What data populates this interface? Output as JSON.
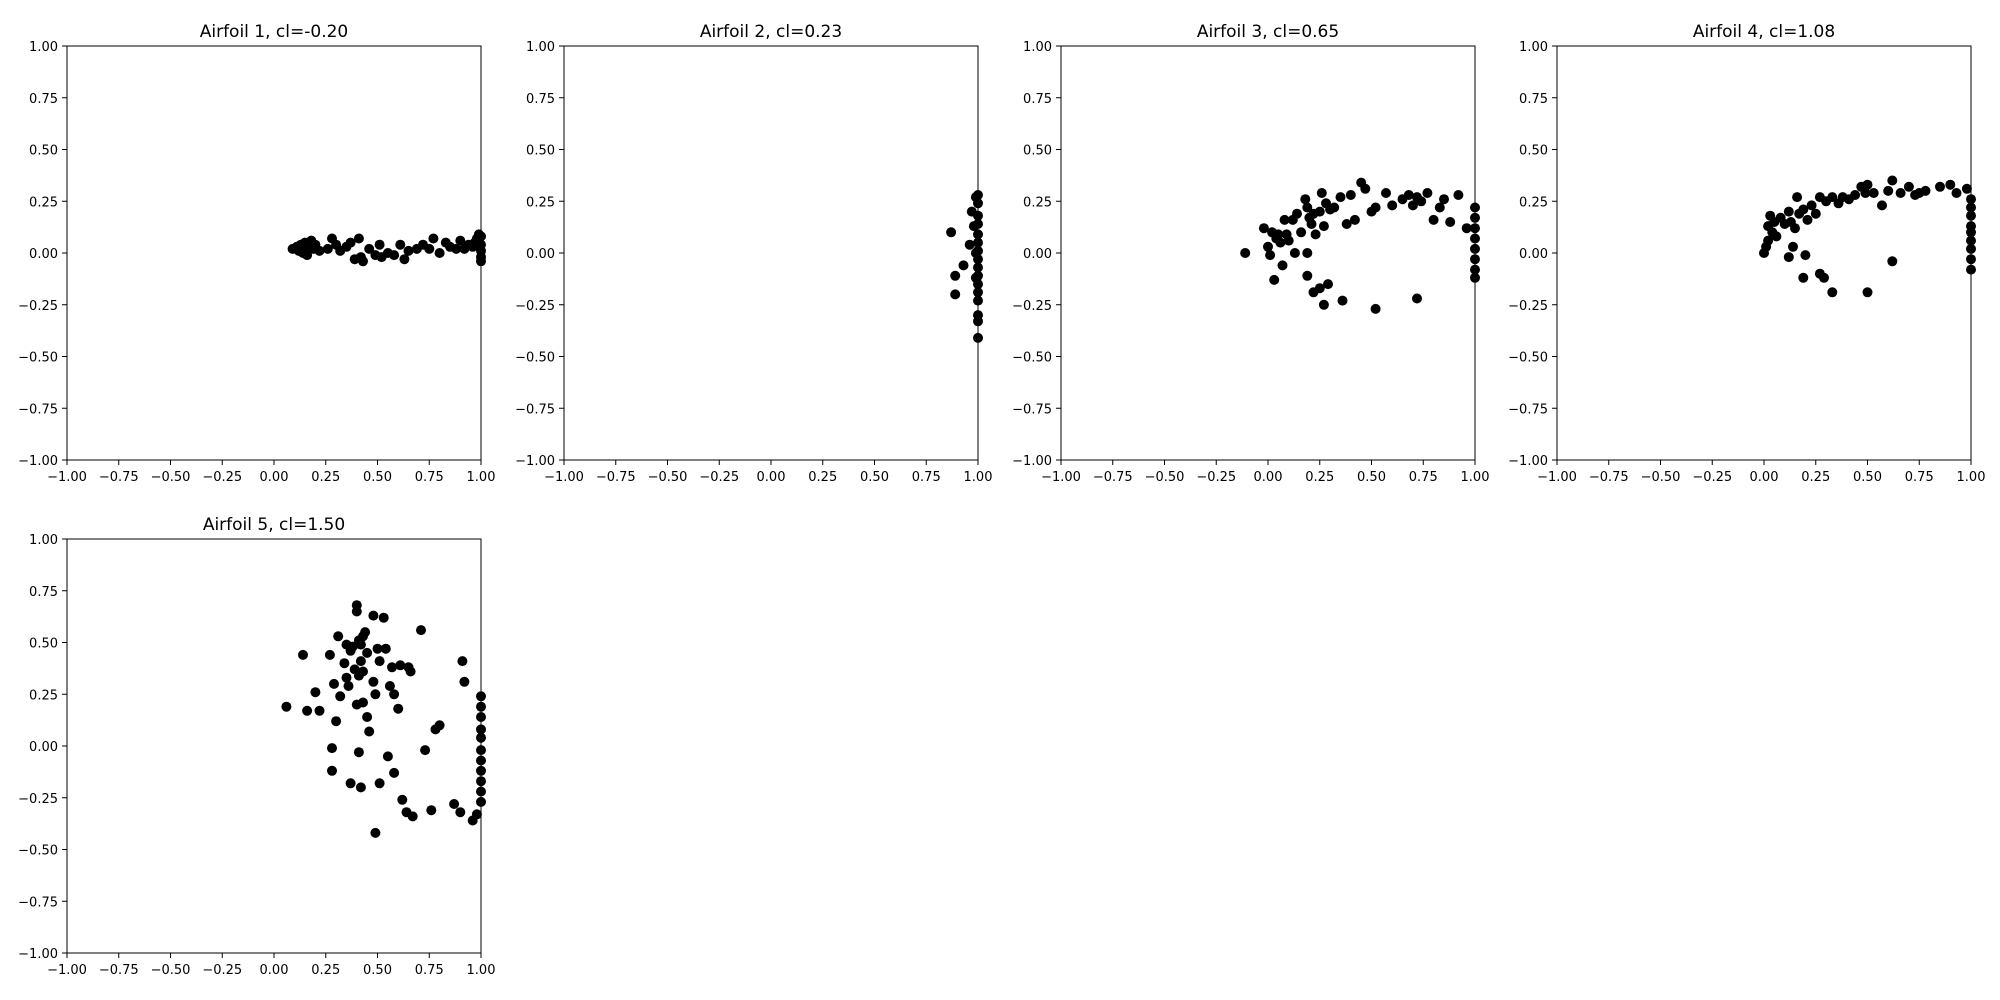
{
  "chart_data": [
    {
      "type": "scatter",
      "title": "Airfoil 1, cl=-0.20",
      "xlim": [
        -1.0,
        1.0
      ],
      "ylim": [
        -1.0,
        1.0
      ],
      "xticks": [
        "−1.00",
        "−0.75",
        "−0.50",
        "−0.25",
        "0.00",
        "0.25",
        "0.50",
        "0.75",
        "1.00"
      ],
      "yticks": [
        "−1.00",
        "−0.75",
        "−0.50",
        "−0.25",
        "0.00",
        "0.25",
        "0.50",
        "0.75",
        "1.00"
      ],
      "grid": false,
      "marker_color": "#000000",
      "points": [
        [
          0.09,
          0.02
        ],
        [
          0.11,
          0.03
        ],
        [
          0.12,
          0.01
        ],
        [
          0.13,
          0.04
        ],
        [
          0.14,
          0.02
        ],
        [
          0.15,
          0.05
        ],
        [
          0.16,
          0.01
        ],
        [
          0.17,
          0.03
        ],
        [
          0.18,
          0.06
        ],
        [
          0.19,
          0.02
        ],
        [
          0.14,
          0.0
        ],
        [
          0.16,
          -0.01
        ],
        [
          0.2,
          0.04
        ],
        [
          0.22,
          0.01
        ],
        [
          0.26,
          0.02
        ],
        [
          0.28,
          0.07
        ],
        [
          0.3,
          0.04
        ],
        [
          0.32,
          0.01
        ],
        [
          0.35,
          0.03
        ],
        [
          0.37,
          0.05
        ],
        [
          0.39,
          -0.03
        ],
        [
          0.41,
          0.07
        ],
        [
          0.42,
          -0.02
        ],
        [
          0.43,
          -0.04
        ],
        [
          0.46,
          0.02
        ],
        [
          0.49,
          -0.01
        ],
        [
          0.51,
          0.04
        ],
        [
          0.52,
          -0.02
        ],
        [
          0.55,
          0.0
        ],
        [
          0.58,
          -0.01
        ],
        [
          0.61,
          0.04
        ],
        [
          0.63,
          -0.03
        ],
        [
          0.65,
          0.01
        ],
        [
          0.69,
          0.02
        ],
        [
          0.72,
          0.04
        ],
        [
          0.75,
          0.02
        ],
        [
          0.77,
          0.07
        ],
        [
          0.8,
          0.0
        ],
        [
          0.83,
          0.05
        ],
        [
          0.85,
          0.03
        ],
        [
          0.88,
          0.02
        ],
        [
          0.9,
          0.06
        ],
        [
          0.92,
          0.02
        ],
        [
          0.94,
          0.04
        ],
        [
          0.96,
          0.03
        ],
        [
          0.98,
          0.07
        ],
        [
          1.0,
          0.08
        ],
        [
          1.0,
          0.04
        ],
        [
          1.0,
          0.01
        ],
        [
          1.0,
          -0.02
        ],
        [
          1.0,
          -0.04
        ],
        [
          0.99,
          0.09
        ],
        [
          0.97,
          0.05
        ]
      ]
    },
    {
      "type": "scatter",
      "title": "Airfoil 2, cl=0.23",
      "xlim": [
        -1.0,
        1.0
      ],
      "ylim": [
        -1.0,
        1.0
      ],
      "xticks": [
        "−1.00",
        "−0.75",
        "−0.50",
        "−0.25",
        "0.00",
        "0.25",
        "0.50",
        "0.75",
        "1.00"
      ],
      "yticks": [
        "−1.00",
        "−0.75",
        "−0.50",
        "−0.25",
        "0.00",
        "0.25",
        "0.50",
        "0.75",
        "1.00"
      ],
      "grid": false,
      "marker_color": "#000000",
      "points": [
        [
          0.87,
          0.1
        ],
        [
          0.89,
          -0.11
        ],
        [
          0.89,
          -0.2
        ],
        [
          0.93,
          -0.06
        ],
        [
          0.96,
          0.04
        ],
        [
          0.97,
          0.2
        ],
        [
          0.98,
          0.13
        ],
        [
          0.99,
          0.27
        ],
        [
          1.0,
          0.28
        ],
        [
          1.0,
          0.24
        ],
        [
          1.0,
          0.18
        ],
        [
          1.0,
          0.14
        ],
        [
          1.0,
          0.09
        ],
        [
          1.0,
          0.05
        ],
        [
          1.0,
          0.01
        ],
        [
          1.0,
          -0.03
        ],
        [
          1.0,
          -0.07
        ],
        [
          1.0,
          -0.11
        ],
        [
          1.0,
          -0.15
        ],
        [
          1.0,
          -0.19
        ],
        [
          1.0,
          -0.23
        ],
        [
          1.0,
          -0.3
        ],
        [
          1.0,
          -0.33
        ],
        [
          1.0,
          -0.41
        ],
        [
          0.99,
          -0.12
        ],
        [
          0.99,
          0.0
        ]
      ]
    },
    {
      "type": "scatter",
      "title": "Airfoil 3, cl=0.65",
      "xlim": [
        -1.0,
        1.0
      ],
      "ylim": [
        -1.0,
        1.0
      ],
      "xticks": [
        "−1.00",
        "−0.75",
        "−0.50",
        "−0.25",
        "0.00",
        "0.25",
        "0.50",
        "0.75",
        "1.00"
      ],
      "yticks": [
        "−1.00",
        "−0.75",
        "−0.50",
        "−0.25",
        "0.00",
        "0.25",
        "0.50",
        "0.75",
        "1.00"
      ],
      "grid": false,
      "marker_color": "#000000",
      "points": [
        [
          -0.11,
          0.0
        ],
        [
          -0.02,
          0.12
        ],
        [
          0.0,
          0.03
        ],
        [
          0.01,
          -0.01
        ],
        [
          0.02,
          0.1
        ],
        [
          0.03,
          -0.13
        ],
        [
          0.04,
          0.07
        ],
        [
          0.05,
          0.09
        ],
        [
          0.06,
          0.05
        ],
        [
          0.07,
          -0.06
        ],
        [
          0.08,
          0.16
        ],
        [
          0.09,
          0.09
        ],
        [
          0.1,
          0.06
        ],
        [
          0.12,
          0.16
        ],
        [
          0.13,
          0.0
        ],
        [
          0.14,
          0.19
        ],
        [
          0.16,
          0.1
        ],
        [
          0.18,
          0.26
        ],
        [
          0.19,
          0.22
        ],
        [
          0.2,
          0.17
        ],
        [
          0.21,
          0.14
        ],
        [
          0.22,
          0.19
        ],
        [
          0.23,
          0.09
        ],
        [
          0.25,
          0.2
        ],
        [
          0.26,
          0.29
        ],
        [
          0.27,
          0.13
        ],
        [
          0.28,
          0.24
        ],
        [
          0.3,
          0.21
        ],
        [
          0.32,
          0.22
        ],
        [
          0.35,
          0.27
        ],
        [
          0.38,
          0.14
        ],
        [
          0.4,
          0.28
        ],
        [
          0.42,
          0.16
        ],
        [
          0.45,
          0.34
        ],
        [
          0.47,
          0.31
        ],
        [
          0.5,
          0.2
        ],
        [
          0.52,
          0.22
        ],
        [
          0.57,
          0.29
        ],
        [
          0.6,
          0.23
        ],
        [
          0.65,
          0.26
        ],
        [
          0.68,
          0.28
        ],
        [
          0.7,
          0.23
        ],
        [
          0.72,
          0.27
        ],
        [
          0.74,
          0.25
        ],
        [
          0.77,
          0.29
        ],
        [
          0.8,
          0.16
        ],
        [
          0.83,
          0.22
        ],
        [
          0.85,
          0.26
        ],
        [
          0.88,
          0.15
        ],
        [
          0.92,
          0.28
        ],
        [
          0.96,
          0.12
        ],
        [
          1.0,
          0.22
        ],
        [
          1.0,
          0.17
        ],
        [
          1.0,
          0.12
        ],
        [
          1.0,
          0.07
        ],
        [
          1.0,
          0.02
        ],
        [
          1.0,
          -0.03
        ],
        [
          1.0,
          -0.08
        ],
        [
          1.0,
          -0.12
        ],
        [
          0.19,
          -0.11
        ],
        [
          0.22,
          -0.19
        ],
        [
          0.25,
          -0.17
        ],
        [
          0.27,
          -0.25
        ],
        [
          0.29,
          -0.15
        ],
        [
          0.36,
          -0.23
        ],
        [
          0.52,
          -0.27
        ],
        [
          0.72,
          -0.22
        ],
        [
          0.19,
          0.0
        ]
      ]
    },
    {
      "type": "scatter",
      "title": "Airfoil 4, cl=1.08",
      "xlim": [
        -1.0,
        1.0
      ],
      "ylim": [
        -1.0,
        1.0
      ],
      "xticks": [
        "−1.00",
        "−0.75",
        "−0.50",
        "−0.25",
        "0.00",
        "0.25",
        "0.50",
        "0.75",
        "1.00"
      ],
      "yticks": [
        "−1.00",
        "−0.75",
        "−0.50",
        "−0.25",
        "0.00",
        "0.25",
        "0.50",
        "0.75",
        "1.00"
      ],
      "grid": false,
      "marker_color": "#000000",
      "points": [
        [
          0.0,
          0.0
        ],
        [
          0.01,
          0.03
        ],
        [
          0.02,
          0.06
        ],
        [
          0.02,
          0.13
        ],
        [
          0.03,
          0.18
        ],
        [
          0.04,
          0.1
        ],
        [
          0.05,
          0.15
        ],
        [
          0.06,
          0.08
        ],
        [
          0.08,
          0.17
        ],
        [
          0.1,
          0.14
        ],
        [
          0.12,
          0.2
        ],
        [
          0.13,
          0.15
        ],
        [
          0.15,
          0.12
        ],
        [
          0.16,
          0.27
        ],
        [
          0.17,
          0.19
        ],
        [
          0.19,
          0.21
        ],
        [
          0.21,
          0.16
        ],
        [
          0.23,
          0.23
        ],
        [
          0.25,
          0.19
        ],
        [
          0.27,
          0.27
        ],
        [
          0.3,
          0.25
        ],
        [
          0.33,
          0.27
        ],
        [
          0.36,
          0.24
        ],
        [
          0.38,
          0.27
        ],
        [
          0.41,
          0.26
        ],
        [
          0.44,
          0.28
        ],
        [
          0.47,
          0.32
        ],
        [
          0.49,
          0.29
        ],
        [
          0.5,
          0.33
        ],
        [
          0.53,
          0.29
        ],
        [
          0.57,
          0.23
        ],
        [
          0.6,
          0.3
        ],
        [
          0.62,
          0.35
        ],
        [
          0.66,
          0.29
        ],
        [
          0.7,
          0.32
        ],
        [
          0.73,
          0.28
        ],
        [
          0.75,
          0.29
        ],
        [
          0.78,
          0.3
        ],
        [
          0.85,
          0.32
        ],
        [
          0.9,
          0.33
        ],
        [
          0.93,
          0.29
        ],
        [
          0.98,
          0.31
        ],
        [
          1.0,
          0.26
        ],
        [
          1.0,
          0.22
        ],
        [
          1.0,
          0.18
        ],
        [
          1.0,
          0.13
        ],
        [
          1.0,
          0.1
        ],
        [
          1.0,
          0.06
        ],
        [
          1.0,
          0.02
        ],
        [
          1.0,
          -0.03
        ],
        [
          1.0,
          -0.08
        ],
        [
          0.12,
          -0.02
        ],
        [
          0.14,
          0.03
        ],
        [
          0.19,
          -0.12
        ],
        [
          0.2,
          -0.01
        ],
        [
          0.27,
          -0.1
        ],
        [
          0.29,
          -0.12
        ],
        [
          0.33,
          -0.19
        ],
        [
          0.5,
          -0.19
        ],
        [
          0.62,
          -0.04
        ]
      ]
    },
    {
      "type": "scatter",
      "title": "Airfoil 5, cl=1.50",
      "xlim": [
        -1.0,
        1.0
      ],
      "ylim": [
        -1.0,
        1.0
      ],
      "xticks": [
        "−1.00",
        "−0.75",
        "−0.50",
        "−0.25",
        "0.00",
        "0.25",
        "0.50",
        "0.75",
        "1.00"
      ],
      "yticks": [
        "−1.00",
        "−0.75",
        "−0.50",
        "−0.25",
        "0.00",
        "0.25",
        "0.50",
        "0.75",
        "1.00"
      ],
      "grid": false,
      "marker_color": "#000000",
      "points": [
        [
          0.06,
          0.19
        ],
        [
          0.14,
          0.44
        ],
        [
          0.16,
          0.17
        ],
        [
          0.2,
          0.26
        ],
        [
          0.22,
          0.17
        ],
        [
          0.27,
          0.44
        ],
        [
          0.28,
          -0.01
        ],
        [
          0.28,
          -0.12
        ],
        [
          0.29,
          0.3
        ],
        [
          0.3,
          0.12
        ],
        [
          0.31,
          0.53
        ],
        [
          0.32,
          0.24
        ],
        [
          0.34,
          0.4
        ],
        [
          0.35,
          0.49
        ],
        [
          0.35,
          0.33
        ],
        [
          0.36,
          0.29
        ],
        [
          0.37,
          0.46
        ],
        [
          0.37,
          -0.18
        ],
        [
          0.38,
          0.48
        ],
        [
          0.39,
          0.37
        ],
        [
          0.4,
          0.68
        ],
        [
          0.4,
          0.65
        ],
        [
          0.41,
          0.51
        ],
        [
          0.41,
          0.34
        ],
        [
          0.42,
          0.49
        ],
        [
          0.42,
          0.41
        ],
        [
          0.42,
          -0.2
        ],
        [
          0.43,
          0.53
        ],
        [
          0.43,
          0.36
        ],
        [
          0.43,
          0.21
        ],
        [
          0.44,
          0.55
        ],
        [
          0.45,
          0.45
        ],
        [
          0.45,
          0.14
        ],
        [
          0.46,
          0.07
        ],
        [
          0.48,
          0.63
        ],
        [
          0.48,
          0.31
        ],
        [
          0.49,
          0.25
        ],
        [
          0.5,
          0.47
        ],
        [
          0.51,
          0.41
        ],
        [
          0.51,
          -0.18
        ],
        [
          0.53,
          0.62
        ],
        [
          0.54,
          0.47
        ],
        [
          0.56,
          0.29
        ],
        [
          0.57,
          0.38
        ],
        [
          0.58,
          0.25
        ],
        [
          0.58,
          -0.13
        ],
        [
          0.6,
          0.18
        ],
        [
          0.61,
          0.39
        ],
        [
          0.62,
          -0.26
        ],
        [
          0.64,
          -0.32
        ],
        [
          0.65,
          0.38
        ],
        [
          0.66,
          0.36
        ],
        [
          0.67,
          -0.34
        ],
        [
          0.71,
          0.56
        ],
        [
          0.73,
          -0.02
        ],
        [
          0.76,
          -0.31
        ],
        [
          0.78,
          0.08
        ],
        [
          0.8,
          0.1
        ],
        [
          0.87,
          -0.28
        ],
        [
          0.9,
          -0.32
        ],
        [
          0.91,
          0.41
        ],
        [
          0.92,
          0.31
        ],
        [
          0.96,
          -0.36
        ],
        [
          0.98,
          -0.33
        ],
        [
          1.0,
          0.24
        ],
        [
          1.0,
          0.19
        ],
        [
          1.0,
          0.14
        ],
        [
          1.0,
          0.08
        ],
        [
          1.0,
          0.04
        ],
        [
          1.0,
          -0.02
        ],
        [
          1.0,
          -0.07
        ],
        [
          1.0,
          -0.12
        ],
        [
          1.0,
          -0.17
        ],
        [
          1.0,
          -0.22
        ],
        [
          1.0,
          -0.27
        ],
        [
          0.49,
          -0.42
        ],
        [
          0.55,
          -0.05
        ],
        [
          0.41,
          -0.03
        ],
        [
          0.4,
          0.2
        ]
      ]
    }
  ]
}
